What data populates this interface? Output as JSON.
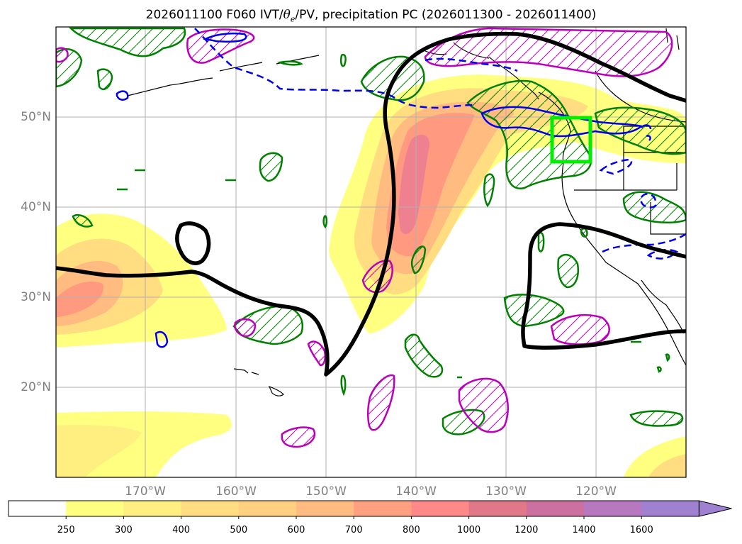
{
  "figure": {
    "title_prefix": "2026011100 F060 IVT/",
    "theta_symbol": "θ",
    "theta_subscript": "e",
    "title_suffix": "/PV, precipitation PC (2026011300 - 2026011400)"
  },
  "map": {
    "lat_labels": [
      "50°N",
      "40°N",
      "30°N",
      "20°N"
    ],
    "lon_labels": [
      "170°W",
      "160°W",
      "150°W",
      "140°W",
      "130°W",
      "120°W"
    ],
    "box_color": "#00ee00",
    "pv_color": "#000000",
    "theta_color": "#0000ee",
    "precip_color": "#008000",
    "pv_neg_color": "#bb00bb"
  },
  "colorbar": {
    "levels": [
      "250",
      "300",
      "400",
      "500",
      "600",
      "700",
      "800",
      "1000",
      "1200",
      "1400",
      "1600"
    ],
    "colors": [
      "#ffffff",
      "#ffff80",
      "#ffee80",
      "#ffdd80",
      "#ffd080",
      "#ffbb80",
      "#ffa080",
      "#ff8888",
      "#e07888",
      "#cc70a0",
      "#b878c0",
      "#a080d0"
    ]
  }
}
